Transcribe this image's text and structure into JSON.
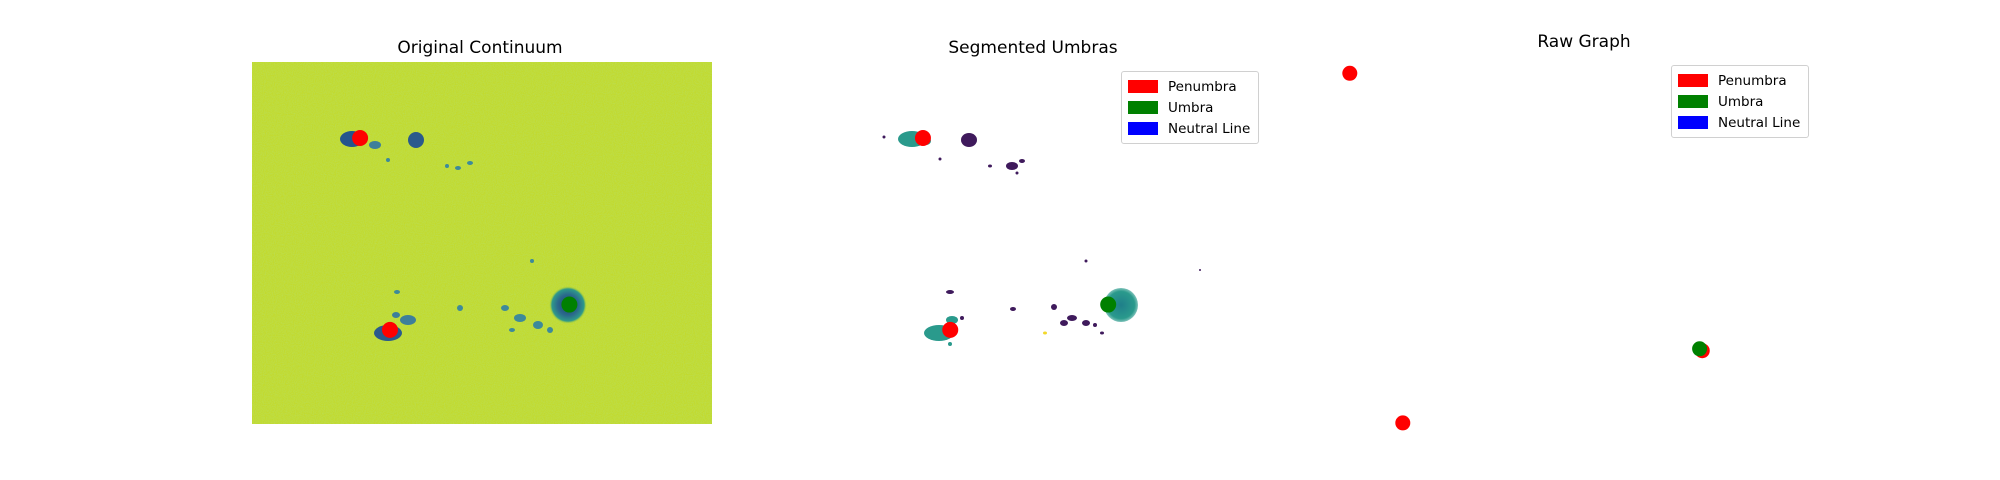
{
  "chart_data": [
    {
      "type": "scatter",
      "title": "Original Continuum",
      "background": "solar continuum intensity image",
      "colors": {
        "background": "#c4dc2a",
        "spot_dark": "#2a5a8c",
        "spot_core": "#1e3f6e"
      },
      "points": [
        {
          "label": "Penumbra",
          "color": "#ff0000",
          "u": 0.235,
          "v": 0.21
        },
        {
          "label": "Penumbra",
          "color": "#ff0000",
          "u": 0.3,
          "v": 0.74
        },
        {
          "label": "Umbra",
          "color": "#008000",
          "u": 0.69,
          "v": 0.67
        }
      ]
    },
    {
      "type": "scatter",
      "title": "Segmented Umbras",
      "legend_position": "top-right",
      "legend": [
        {
          "label": "Penumbra",
          "color": "#ff0000"
        },
        {
          "label": "Umbra",
          "color": "#008000"
        },
        {
          "label": "Neutral Line",
          "color": "#0000ff"
        }
      ],
      "points": [
        {
          "label": "Penumbra",
          "color": "#ff0000",
          "u": 0.105,
          "v": 0.21
        },
        {
          "label": "Penumbra",
          "color": "#ff0000",
          "u": 0.175,
          "v": 0.74
        },
        {
          "label": "Umbra",
          "color": "#008000",
          "u": 0.58,
          "v": 0.67
        }
      ]
    },
    {
      "type": "scatter",
      "title": "Raw Graph",
      "legend_position": "top-right",
      "legend": [
        {
          "label": "Penumbra",
          "color": "#ff0000"
        },
        {
          "label": "Umbra",
          "color": "#008000"
        },
        {
          "label": "Neutral Line",
          "color": "#0000ff"
        }
      ],
      "points": [
        {
          "label": "Penumbra",
          "color": "#ff0000",
          "u": 0.06,
          "v": 0.035
        },
        {
          "label": "Penumbra",
          "color": "#ff0000",
          "u": 0.16,
          "v": 0.955
        },
        {
          "label": "Penumbra",
          "color": "#ff0000",
          "u": 0.725,
          "v": 0.765
        },
        {
          "label": "Umbra",
          "color": "#008000",
          "u": 0.72,
          "v": 0.76
        }
      ]
    }
  ]
}
